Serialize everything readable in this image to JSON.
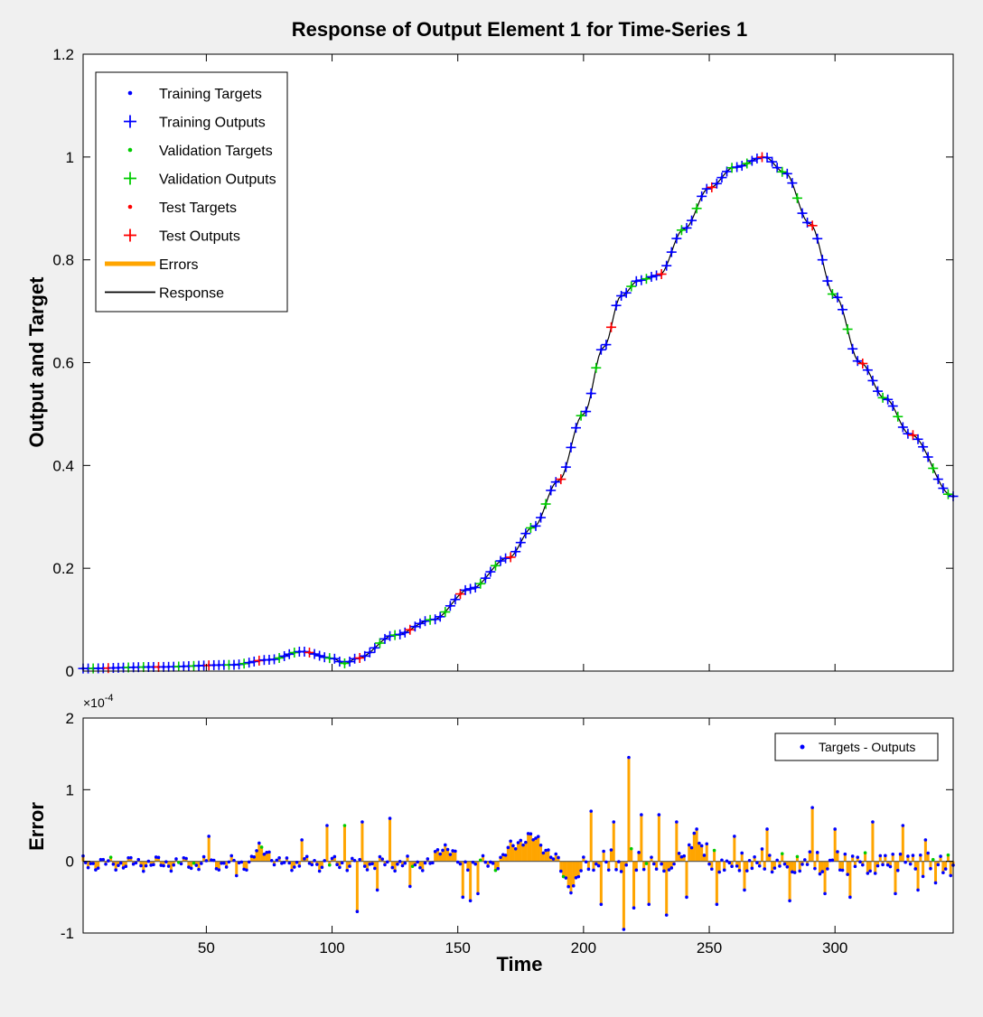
{
  "window": {
    "background": "#f0f0f0"
  },
  "colors": {
    "training": "#0000ff",
    "validation": "#00cc00",
    "test": "#ff0000",
    "errors": "#ffa500",
    "response": "#000000",
    "zero_line": "#555555"
  },
  "chart_data": [
    {
      "type": "line",
      "title": "Response of Output Element 1 for Time-Series 1",
      "xlabel": "",
      "ylabel": "Output and Target",
      "xlim": [
        1,
        347
      ],
      "ylim": [
        0,
        1.2
      ],
      "yticks": [
        "0",
        "0.2",
        "0.4",
        "0.6",
        "0.8",
        "1",
        "1.2"
      ],
      "ytick_values": [
        0,
        0.2,
        0.4,
        0.6,
        0.8,
        1.0,
        1.2
      ],
      "xticks": [
        50,
        100,
        150,
        200,
        250,
        300
      ],
      "grid": false,
      "legend_position": "top-left",
      "legend": [
        {
          "label": "Training Targets",
          "marker": "dot",
          "color": "#0000ff"
        },
        {
          "label": "Training Outputs",
          "marker": "plus",
          "color": "#0000ff"
        },
        {
          "label": "Validation Targets",
          "marker": "dot",
          "color": "#00cc00"
        },
        {
          "label": "Validation Outputs",
          "marker": "plus",
          "color": "#00cc00"
        },
        {
          "label": "Test Targets",
          "marker": "dot",
          "color": "#ff0000"
        },
        {
          "label": "Test Outputs",
          "marker": "plus",
          "color": "#ff0000"
        },
        {
          "label": "Errors",
          "marker": "thick-line",
          "color": "#ffa500"
        },
        {
          "label": "Response",
          "marker": "line",
          "color": "#000000"
        }
      ],
      "series_keypoints": {
        "x": [
          1,
          30,
          60,
          75,
          88,
          100,
          105,
          110,
          125,
          140,
          155,
          170,
          180,
          190,
          200,
          208,
          215,
          222,
          230,
          240,
          250,
          260,
          272,
          280,
          290,
          300,
          310,
          320,
          330,
          347
        ],
        "y": [
          0.005,
          0.008,
          0.012,
          0.022,
          0.038,
          0.025,
          0.015,
          0.025,
          0.07,
          0.1,
          0.16,
          0.22,
          0.28,
          0.37,
          0.5,
          0.63,
          0.73,
          0.76,
          0.77,
          0.86,
          0.94,
          0.98,
          1.0,
          0.97,
          0.87,
          0.73,
          0.6,
          0.53,
          0.46,
          0.34
        ]
      }
    },
    {
      "type": "line",
      "title": "",
      "xlabel": "Time",
      "ylabel": "Error",
      "exponent_label": "×10",
      "exponent_power": "-4",
      "xlim": [
        1,
        347
      ],
      "ylim": [
        -1,
        2
      ],
      "yticks": [
        "-1",
        "0",
        "1",
        "2"
      ],
      "ytick_values": [
        -1,
        0,
        1,
        2
      ],
      "xticks": [
        50,
        100,
        150,
        200,
        250,
        300
      ],
      "grid": false,
      "legend_position": "top-right",
      "legend": [
        {
          "label": "Targets - Outputs",
          "marker": "dot",
          "color": "#0000ff"
        }
      ],
      "spikes": {
        "x": [
          51,
          62,
          88,
          98,
          105,
          110,
          112,
          118,
          123,
          131,
          152,
          155,
          158,
          203,
          207,
          212,
          216,
          218,
          220,
          223,
          226,
          230,
          233,
          237,
          241,
          245,
          253,
          260,
          264,
          273,
          282,
          291,
          296,
          300,
          306,
          315,
          324,
          327,
          333,
          336,
          340
        ],
        "y": [
          0.35,
          -0.2,
          0.3,
          0.5,
          0.5,
          -0.7,
          0.55,
          -0.4,
          0.6,
          -0.35,
          -0.5,
          -0.55,
          -0.45,
          0.7,
          -0.6,
          0.55,
          -0.95,
          1.45,
          -0.65,
          0.65,
          -0.6,
          0.65,
          -0.75,
          0.55,
          -0.5,
          0.45,
          -0.6,
          0.35,
          -0.4,
          0.45,
          -0.55,
          0.75,
          -0.45,
          0.45,
          -0.5,
          0.55,
          -0.45,
          0.5,
          -0.4,
          0.3,
          -0.3
        ]
      },
      "lobes": [
        {
          "x_start": 140,
          "x_end": 150,
          "peak": 0.25
        },
        {
          "x_start": 166,
          "x_end": 190,
          "peak": 0.35
        },
        {
          "x_start": 190,
          "x_end": 200,
          "peak": -0.3
        },
        {
          "x_start": 238,
          "x_end": 250,
          "peak": 0.35
        },
        {
          "x_start": 67,
          "x_end": 78,
          "peak": 0.2
        }
      ]
    }
  ]
}
